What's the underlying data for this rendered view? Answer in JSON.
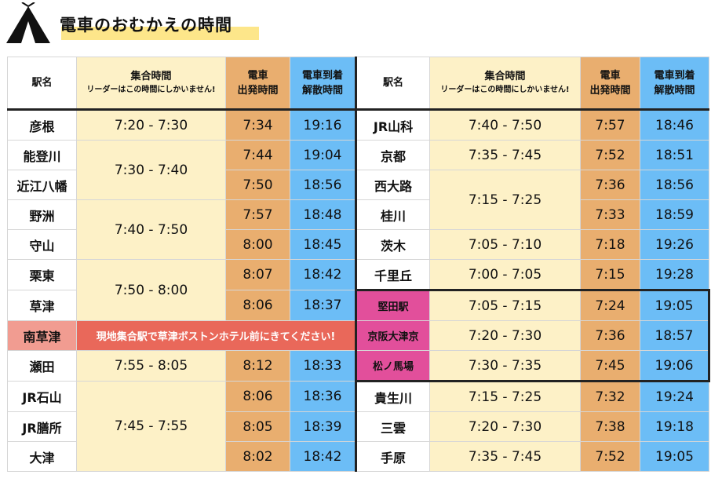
{
  "title": "電車のおむかえの時間",
  "icons": {
    "logo": "tent-icon"
  },
  "colors": {
    "gather": "#fdf1c7",
    "departure": "#e9ae6f",
    "arrival": "#6cbdf6",
    "highlight_pink": "#e24f9b",
    "note_red": "#e9685a",
    "note_name": "#f19c91",
    "title_highlight": "#fde68a"
  },
  "headers": {
    "station": "駅名",
    "gather": "集合時間",
    "gather_note": "リーダーはこの時間にしかいません!",
    "departure_1": "電車",
    "departure_2": "出発時間",
    "arrival_1": "電車到着",
    "arrival_2": "解散時間"
  },
  "left": [
    {
      "station": "彦根",
      "gather": "7:20 - 7:30",
      "departure": "7:34",
      "arrival": "19:16"
    },
    {
      "station": "能登川",
      "gather": "7:30 - 7:40",
      "departure": "7:44",
      "arrival": "19:04"
    },
    {
      "station": "近江八幡",
      "departure": "7:50",
      "arrival": "18:56"
    },
    {
      "station": "野洲",
      "gather": "7:40 - 7:50",
      "departure": "7:57",
      "arrival": "18:48"
    },
    {
      "station": "守山",
      "departure": "8:00",
      "arrival": "18:45"
    },
    {
      "station": "栗東",
      "gather": "7:50 - 8:00",
      "departure": "8:07",
      "arrival": "18:42"
    },
    {
      "station": "草津",
      "departure": "8:06",
      "arrival": "18:37"
    },
    {
      "station": "南草津",
      "note": "現地集合駅で草津ボストンホテル前にきてください!"
    },
    {
      "station": "瀬田",
      "gather": "7:55 - 8:05",
      "departure": "8:12",
      "arrival": "18:33"
    },
    {
      "station": "JR石山",
      "gather": "7:45 - 7:55",
      "departure": "8:06",
      "arrival": "18:36"
    },
    {
      "station": "JR膳所",
      "departure": "8:05",
      "arrival": "18:39"
    },
    {
      "station": "大津",
      "departure": "8:02",
      "arrival": "18:42"
    }
  ],
  "right": [
    {
      "station": "JR山科",
      "gather": "7:40 - 7:50",
      "departure": "7:57",
      "arrival": "18:46"
    },
    {
      "station": "京都",
      "gather": "7:35 - 7:45",
      "departure": "7:52",
      "arrival": "18:51"
    },
    {
      "station": "西大路",
      "gather": "7:15 - 7:25",
      "departure": "7:36",
      "arrival": "18:56"
    },
    {
      "station": "桂川",
      "departure": "7:33",
      "arrival": "18:59"
    },
    {
      "station": "茨木",
      "gather": "7:05 - 7:10",
      "departure": "7:18",
      "arrival": "19:26"
    },
    {
      "station": "千里丘",
      "gather": "7:00 - 7:05",
      "departure": "7:15",
      "arrival": "19:28"
    },
    {
      "station": "堅田駅",
      "gather": "7:05 - 7:15",
      "departure": "7:24",
      "arrival": "19:05"
    },
    {
      "station": "京阪大津京",
      "gather": "7:20 - 7:30",
      "departure": "7:36",
      "arrival": "18:57"
    },
    {
      "station": "松ノ馬場",
      "gather": "7:30 - 7:35",
      "departure": "7:45",
      "arrival": "19:06"
    },
    {
      "station": "貴生川",
      "gather": "7:15 - 7:25",
      "departure": "7:32",
      "arrival": "19:24"
    },
    {
      "station": "三雲",
      "gather": "7:20 - 7:30",
      "departure": "7:38",
      "arrival": "19:18"
    },
    {
      "station": "手原",
      "gather": "7:35 - 7:45",
      "departure": "7:52",
      "arrival": "19:05"
    }
  ]
}
